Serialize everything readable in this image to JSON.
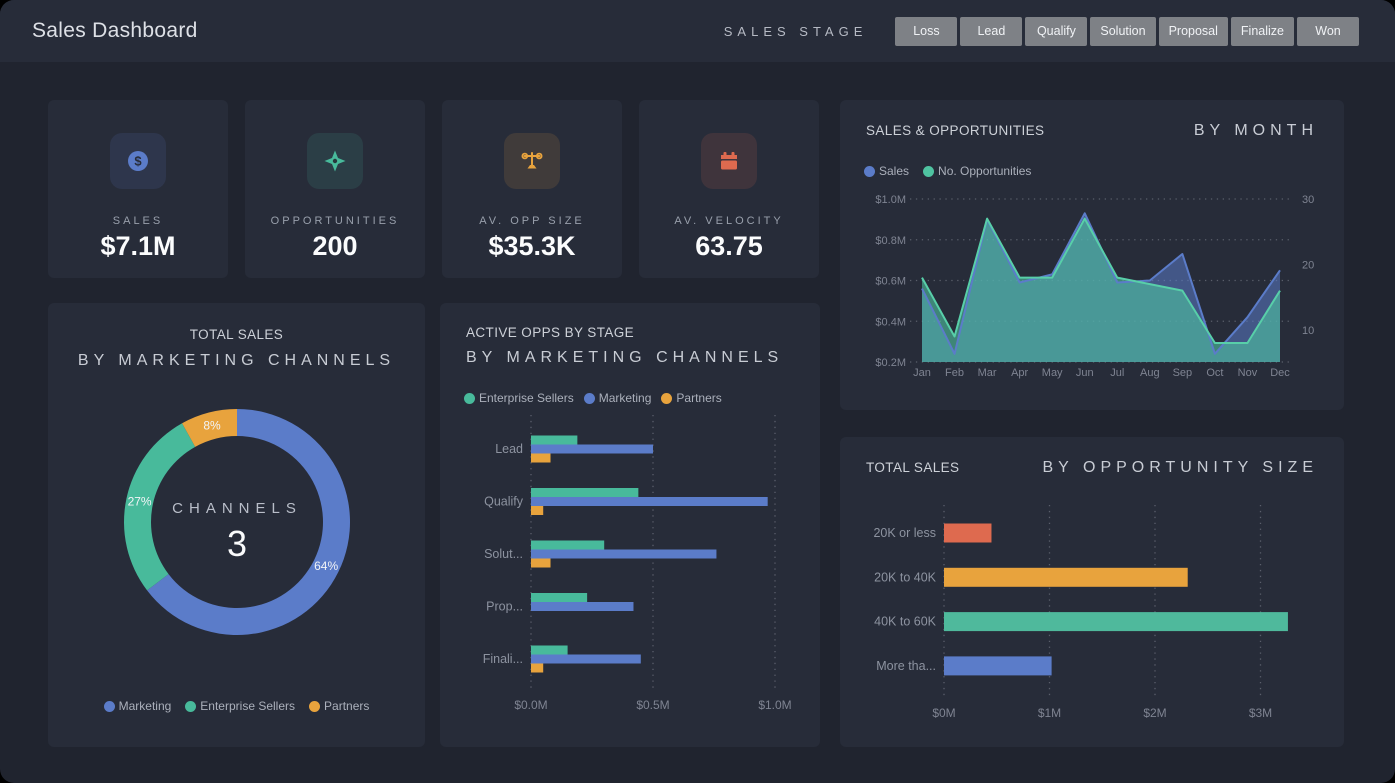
{
  "header": {
    "title": "Sales Dashboard",
    "stage_label": "SALES STAGE",
    "stage_buttons": [
      "Loss",
      "Lead",
      "Qualify",
      "Solution",
      "Proposal",
      "Finalize",
      "Won"
    ]
  },
  "palette": {
    "blue": "#5B7CC9",
    "teal": "#48BA9B",
    "orange": "#E8A33D",
    "coral": "#DE6A4F",
    "background": "#20242F",
    "surface": "#272C39",
    "button_gray": "#7E8186",
    "muted_text": "#99A0AC",
    "axis_text": "#7F8492"
  },
  "kpis": [
    {
      "label": "SALES",
      "value": "$7.1M",
      "icon": "dollar-circle-icon",
      "color": "#5B7CC9"
    },
    {
      "label": "OPPORTUNITIES",
      "value": "200",
      "icon": "target-icon",
      "color": "#48BA9B"
    },
    {
      "label": "AV. OPP SIZE",
      "value": "$35.3K",
      "icon": "scale-icon",
      "color": "#E8A33D"
    },
    {
      "label": "AV. VELOCITY",
      "value": "63.75",
      "icon": "calendar-icon",
      "color": "#DE6A4F"
    }
  ],
  "chart_data": [
    {
      "id": "sales-opportunities-by-month",
      "type": "area",
      "title": "SALES & OPPORTUNITIES",
      "subtitle": "BY MONTH",
      "x": [
        "Jan",
        "Feb",
        "Mar",
        "Apr",
        "May",
        "Jun",
        "Jul",
        "Aug",
        "Sep",
        "Oct",
        "Nov",
        "Dec"
      ],
      "series": [
        {
          "name": "Sales",
          "color": "#5B7CC9",
          "axis": "left",
          "values": [
            0.56,
            0.24,
            0.9,
            0.59,
            0.63,
            0.93,
            0.59,
            0.6,
            0.73,
            0.24,
            0.42,
            0.65
          ]
        },
        {
          "name": "No. Opportunities",
          "color": "#4FC3A1",
          "axis": "right",
          "values": [
            18,
            9,
            27,
            18,
            18,
            27,
            18,
            17,
            16,
            8,
            8,
            16
          ]
        }
      ],
      "left_axis": {
        "ticks": [
          "$0.2M",
          "$0.4M",
          "$0.6M",
          "$0.8M",
          "$1.0M"
        ],
        "min": 0.2,
        "max": 1.0
      },
      "right_axis": {
        "ticks": [
          10,
          20,
          30
        ],
        "min": 5.1,
        "max": 30
      },
      "grid": "horizontal-dotted",
      "legend_position": "top-left"
    },
    {
      "id": "total-sales-by-marketing-channels",
      "type": "donut",
      "title": "TOTAL SALES",
      "subtitle": "BY MARKETING CHANNELS",
      "center_label": "CHANNELS",
      "center_value": "3",
      "slices": [
        {
          "name": "Marketing",
          "pct": 64,
          "color": "#5B7CC9",
          "label": "64%"
        },
        {
          "name": "Enterprise Sellers",
          "pct": 27,
          "color": "#48BA9B",
          "label": "27%"
        },
        {
          "name": "Partners",
          "pct": 8,
          "color": "#E8A33D",
          "label": "8%"
        }
      ],
      "legend_position": "bottom-center"
    },
    {
      "id": "active-opps-by-stage",
      "type": "grouped-bar-horizontal",
      "title": "ACTIVE OPPS BY STAGE",
      "subtitle": "BY MARKETING CHANNELS",
      "categories": [
        "Lead",
        "Qualify",
        "Solut...",
        "Prop...",
        "Finali..."
      ],
      "series": [
        {
          "name": "Enterprise Sellers",
          "color": "#48BA9B",
          "values": [
            0.19,
            0.44,
            0.3,
            0.23,
            0.15
          ]
        },
        {
          "name": "Marketing",
          "color": "#5B7CC9",
          "values": [
            0.5,
            0.97,
            0.76,
            0.42,
            0.45
          ]
        },
        {
          "name": "Partners",
          "color": "#E8A33D",
          "values": [
            0.08,
            0.05,
            0.08,
            0,
            0.05
          ]
        }
      ],
      "x_ticks": [
        "$0.0M",
        "$0.5M",
        "$1.0M"
      ],
      "x_tick_values": [
        0,
        0.5,
        1.0
      ],
      "xlim": [
        0,
        1.0
      ],
      "grid": "vertical-dotted",
      "legend_position": "top-left"
    },
    {
      "id": "total-sales-by-opportunity-size",
      "type": "bar-horizontal",
      "title": "TOTAL SALES",
      "subtitle": "BY OPPORTUNITY SIZE",
      "categories": [
        "20K or less",
        "20K to 40K",
        "40K to 60K",
        "More tha..."
      ],
      "values": [
        0.45,
        2.31,
        3.26,
        1.02
      ],
      "colors": [
        "#DE6A4F",
        "#E8A33D",
        "#4FB99C",
        "#5B7CC9"
      ],
      "x_ticks": [
        "$0M",
        "$1M",
        "$2M",
        "$3M"
      ],
      "x_tick_values": [
        0,
        1,
        2,
        3
      ],
      "xlim": [
        0,
        3
      ],
      "grid": "vertical-dotted"
    }
  ]
}
